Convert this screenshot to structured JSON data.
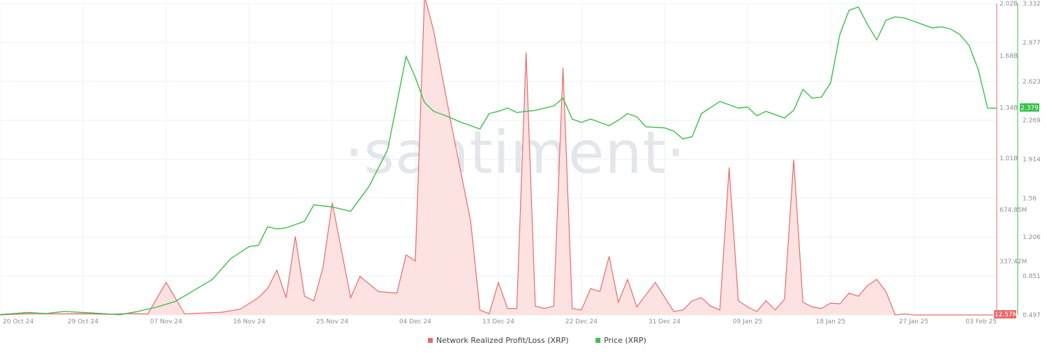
{
  "watermark": "·santiment·",
  "chart_data": {
    "type": "line",
    "x_tick_labels": [
      "20 Oct 24",
      "29 Oct 24",
      "07 Nov 24",
      "16 Nov 24",
      "25 Nov 24",
      "04 Dec 24",
      "13 Dec 24",
      "22 Dec 24",
      "31 Dec 24",
      "09 Jan 25",
      "18 Jan 25",
      "27 Jan 25",
      "03 Feb 25"
    ],
    "x_tick_positions": [
      0,
      9,
      18,
      27,
      36,
      45,
      54,
      63,
      72,
      81,
      90,
      99,
      108
    ],
    "x_range": [
      0,
      108
    ],
    "y_axis_left": {
      "ticks": [
        -12570000,
        337420000,
        674850000,
        1010000000,
        1340000000,
        1680000000,
        2020000000
      ],
      "tick_labels": [
        "",
        "337.42M",
        "674.85M",
        "1.01B",
        "1.34B",
        "1.68B",
        "2.02B"
      ],
      "range": [
        -12570000,
        2020000000
      ],
      "color": "#e86a6a"
    },
    "y_axis_right": {
      "ticks": [
        0.497,
        0.851,
        1.206,
        1.56,
        1.914,
        2.269,
        2.623,
        2.977,
        3.332
      ],
      "tick_labels": [
        "0.497",
        "0.851",
        "1.206",
        "1.56",
        "1.914",
        "2.269",
        "2.623",
        "2.977",
        "3.332"
      ],
      "range": [
        0.497,
        3.332
      ],
      "color": "#3bbf4a"
    },
    "series": [
      {
        "name": "Network Realized Profit/Loss (XRP)",
        "color": "#e86a6a",
        "fill": "#fde2e2",
        "axis": "left",
        "x": [
          0,
          3,
          6,
          9,
          12,
          14,
          16,
          18,
          20,
          22,
          24,
          26,
          28,
          29,
          30,
          31,
          32,
          33,
          34,
          35,
          36,
          38,
          39,
          41,
          43,
          44,
          45,
          46,
          47,
          49,
          51,
          52,
          53,
          54,
          55,
          56,
          57,
          58,
          59,
          60,
          61,
          62,
          63,
          64,
          65,
          66,
          67,
          68,
          69,
          70,
          71,
          73,
          74,
          75,
          76,
          77,
          78,
          79,
          80,
          81,
          82,
          83,
          84,
          85,
          86,
          87,
          88,
          89,
          90,
          91,
          92,
          93,
          94,
          95,
          96,
          97,
          98,
          99,
          100,
          101,
          102,
          103,
          104,
          105,
          106,
          107,
          108
        ],
        "y": [
          -12570000,
          -3000000,
          -5000000,
          -4000000,
          -8000000,
          -3000000,
          -6000000,
          200000000,
          -5000000,
          0,
          5000000,
          25000000,
          100000000,
          160000000,
          280000000,
          100000000,
          500000000,
          110000000,
          80000000,
          300000000,
          720000000,
          100000000,
          240000000,
          140000000,
          130000000,
          380000000,
          340000000,
          2070000000,
          1840000000,
          1200000000,
          600000000,
          20000000,
          -5000000,
          200000000,
          30000000,
          30000000,
          1700000000,
          45000000,
          30000000,
          45000000,
          1600000000,
          30000000,
          20000000,
          160000000,
          140000000,
          370000000,
          70000000,
          220000000,
          40000000,
          120000000,
          200000000,
          10000000,
          20000000,
          80000000,
          100000000,
          45000000,
          20000000,
          950000000,
          80000000,
          40000000,
          10000000,
          80000000,
          20000000,
          90000000,
          1000000000,
          70000000,
          40000000,
          30000000,
          65000000,
          60000000,
          130000000,
          110000000,
          180000000,
          220000000,
          140000000,
          -12570000,
          -5000000,
          -12570000,
          -12570000,
          -12570000,
          -12570000,
          -12570000,
          -12570000,
          -12570000,
          -12570000,
          -12570000,
          -12570000
        ]
      },
      {
        "name": "Price (XRP)",
        "color": "#3bbf4a",
        "axis": "right",
        "x": [
          0,
          3,
          5,
          7,
          9,
          11,
          13,
          15,
          17,
          19,
          21,
          23,
          25,
          27,
          28,
          29,
          30,
          31,
          33,
          34,
          36,
          38,
          40,
          42,
          44,
          45,
          46,
          47,
          48,
          50,
          52,
          53,
          54,
          55,
          56,
          58,
          60,
          61,
          62,
          63,
          64,
          65,
          66,
          67,
          68,
          69,
          70,
          72,
          73,
          74,
          75,
          76,
          78,
          79,
          80,
          81,
          82,
          83,
          85,
          86,
          87,
          88,
          89,
          90,
          91,
          92,
          93,
          94,
          95,
          96,
          97,
          98,
          99,
          100,
          101,
          102,
          103,
          104,
          105,
          106,
          107,
          108
        ],
        "y": [
          0.5,
          0.52,
          0.51,
          0.53,
          0.52,
          0.51,
          0.5,
          0.53,
          0.57,
          0.62,
          0.72,
          0.82,
          1.01,
          1.12,
          1.13,
          1.3,
          1.28,
          1.29,
          1.35,
          1.5,
          1.48,
          1.44,
          1.67,
          2.0,
          2.85,
          2.66,
          2.43,
          2.35,
          2.32,
          2.25,
          2.19,
          2.33,
          2.35,
          2.38,
          2.34,
          2.36,
          2.4,
          2.47,
          2.28,
          2.25,
          2.28,
          2.25,
          2.22,
          2.27,
          2.33,
          2.3,
          2.21,
          2.2,
          2.17,
          2.1,
          2.12,
          2.33,
          2.44,
          2.41,
          2.38,
          2.39,
          2.31,
          2.35,
          2.29,
          2.36,
          2.55,
          2.47,
          2.48,
          2.61,
          3.05,
          3.27,
          3.3,
          3.14,
          3.0,
          3.18,
          3.21,
          3.2,
          3.17,
          3.14,
          3.11,
          3.12,
          3.1,
          3.05,
          2.95,
          2.73,
          2.38,
          2.379
        ]
      }
    ],
    "current_value_badges": {
      "left": "-12.57M",
      "right": "2.379"
    },
    "legend": [
      "Network Realized Profit/Loss (XRP)",
      "Price (XRP)"
    ],
    "legend_position": "bottom-center",
    "grid": true
  }
}
